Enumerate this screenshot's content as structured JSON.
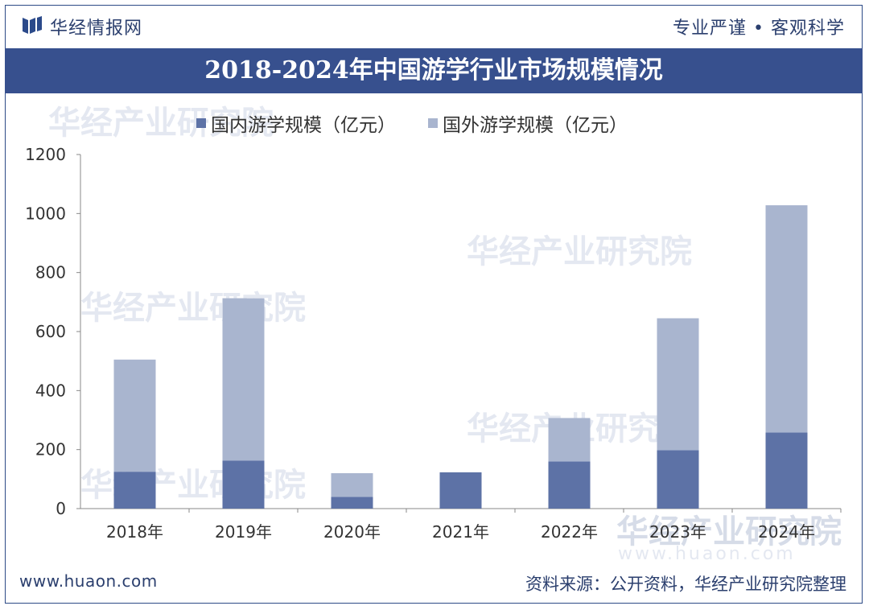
{
  "header": {
    "brand": "华经情报网",
    "slogan": "专业严谨 • 客观科学"
  },
  "watermark": {
    "text": "华经产业研究院",
    "url": "www.huaon.com"
  },
  "footer": {
    "website": "www.huaon.com",
    "source": "资料来源：公开资料，华经产业研究院整理"
  },
  "colors": {
    "title_bar": "#37508e",
    "domestic": "#5d72a6",
    "foreign": "#a9b5cf",
    "axis": "#888888"
  },
  "chart_data": {
    "type": "bar",
    "stacked": true,
    "title": "2018-2024年中国游学行业市场规模情况",
    "xlabel": "",
    "ylabel": "",
    "categories": [
      "2018年",
      "2019年",
      "2020年",
      "2021年",
      "2022年",
      "2023年",
      "2024年"
    ],
    "series": [
      {
        "name": "国内游学规模（亿元）",
        "values": [
          125,
          163,
          40,
          123,
          160,
          198,
          258
        ]
      },
      {
        "name": "国外游学规模（亿元）",
        "values": [
          380,
          550,
          80,
          0,
          147,
          447,
          770
        ]
      }
    ],
    "ylim": [
      0,
      1200
    ],
    "yticks": [
      0,
      200,
      400,
      600,
      800,
      1000,
      1200
    ],
    "legend": "top"
  }
}
